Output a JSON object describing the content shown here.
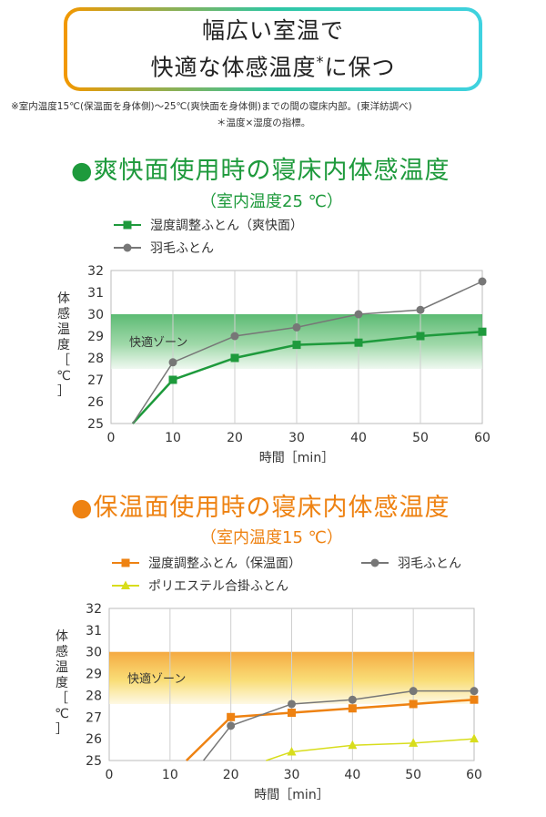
{
  "header": {
    "line1": "幅広い室温で",
    "line2_prefix": "快適な体感温度",
    "line2_star": "*",
    "line2_suffix": "に保つ"
  },
  "notes": {
    "note1": "※室内温度15℃(保温面を身体側)～25℃(爽快面を身体側)までの間の寝床内部。(東洋紡調べ)",
    "note2": "＊温度×湿度の指標。"
  },
  "colors": {
    "green": "#1e9a3c",
    "orange": "#ee8212",
    "gray": "#777777",
    "yellow": "#d8dd1c"
  },
  "chart_data": [
    {
      "type": "line",
      "title": "●爽快面使用時の寝床内体感温度",
      "subtitle": "（室内温度25 ℃）",
      "xlabel": "時間［min］",
      "ylabel": "体感温度［℃］",
      "xlim": [
        0,
        60
      ],
      "ylim": [
        25,
        32
      ],
      "xticks": [
        0,
        10,
        20,
        30,
        40,
        50,
        60
      ],
      "yticks": [
        25,
        26,
        27,
        28,
        29,
        30,
        31,
        32
      ],
      "grid": true,
      "comfort_zone": {
        "label": "快適ゾーン",
        "range": [
          27.5,
          30
        ]
      },
      "series": [
        {
          "name": "湿度調整ふとん（爽快面）",
          "color": "#1e9a3c",
          "marker": "square",
          "x": [
            3.5,
            10,
            20,
            30,
            40,
            50,
            60
          ],
          "y": [
            25,
            27,
            28,
            28.6,
            28.7,
            29,
            29.2
          ]
        },
        {
          "name": "羽毛ふとん",
          "color": "#777777",
          "marker": "circle",
          "x": [
            3.5,
            10,
            20,
            30,
            40,
            50,
            60
          ],
          "y": [
            25,
            27.8,
            29,
            29.4,
            30,
            30.2,
            31.5
          ]
        }
      ]
    },
    {
      "type": "line",
      "title": "●保温面使用時の寝床内体感温度",
      "subtitle": "（室内温度15 ℃）",
      "xlabel": "時間［min］",
      "ylabel": "体感温度［℃］",
      "xlim": [
        0,
        60
      ],
      "ylim": [
        25,
        32
      ],
      "xticks": [
        0,
        10,
        20,
        30,
        40,
        50,
        60
      ],
      "yticks": [
        25,
        26,
        27,
        28,
        29,
        30,
        31,
        32
      ],
      "grid": true,
      "comfort_zone": {
        "label": "快適ゾーン",
        "range": [
          27.6,
          30
        ]
      },
      "series": [
        {
          "name": "湿度調整ふとん（保温面）",
          "color": "#ee8212",
          "marker": "square",
          "x": [
            12.7,
            20,
            30,
            40,
            50,
            60
          ],
          "y": [
            25,
            27,
            27.2,
            27.4,
            27.6,
            27.8
          ]
        },
        {
          "name": "羽毛ふとん",
          "color": "#777777",
          "marker": "circle",
          "x": [
            15.5,
            20,
            30,
            40,
            50,
            60
          ],
          "y": [
            25,
            26.6,
            27.6,
            27.8,
            28.2,
            28.2
          ]
        },
        {
          "name": "ポリエステル合掛ふとん",
          "color": "#d8dd1c",
          "marker": "triangle",
          "x": [
            25.8,
            30,
            40,
            50,
            60
          ],
          "y": [
            25,
            25.4,
            25.7,
            25.8,
            26
          ]
        }
      ]
    }
  ]
}
